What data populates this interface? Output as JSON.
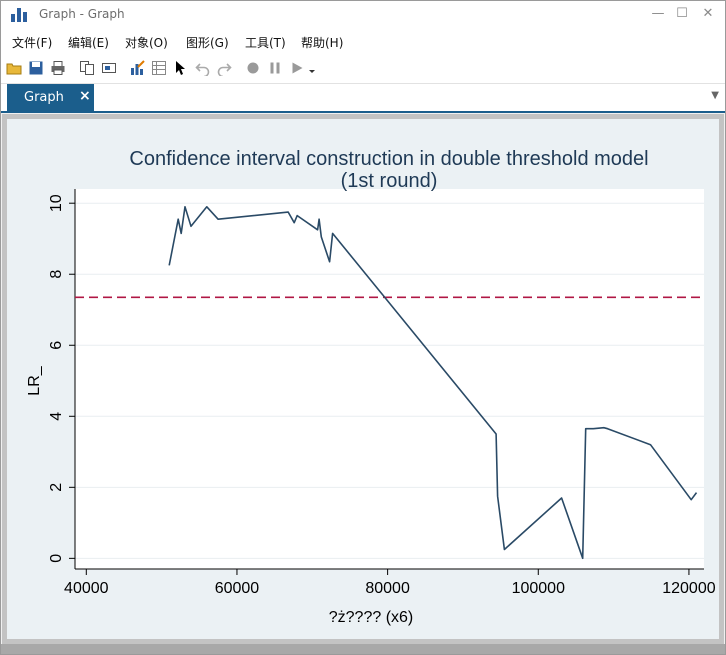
{
  "window": {
    "title": "Graph - Graph",
    "minimize_icon": "minimize-icon",
    "maximize_icon": "maximize-icon",
    "close_icon": "close-icon"
  },
  "menu": {
    "items": [
      "文件(F)",
      "编辑(E)",
      "对象(O)",
      "图形(G)",
      "工具(T)",
      "帮助(H)"
    ]
  },
  "toolbar": {
    "icons": [
      "open-folder-icon",
      "save-icon",
      "print-icon",
      "copy-icon",
      "rename-icon",
      "graph-editor-icon",
      "data-editor-icon",
      "pointer-icon",
      "undo-icon",
      "redo-icon",
      "record-icon",
      "pause-icon",
      "play-icon"
    ]
  },
  "tabs": [
    {
      "label": "Graph",
      "close": "×"
    }
  ],
  "colors": {
    "series": "#2a4a66",
    "reference_line": "#b01744",
    "plot_background": "#ffffff",
    "canvas_background": "#ebf1f4",
    "tab_active": "#1b5e8c"
  },
  "chart_data": {
    "type": "line",
    "title": "Confidence interval construction in double threshold model",
    "subtitle": "(1st round)",
    "xlabel": "?ż???? (x6)",
    "ylabel": "LR_",
    "xlim": [
      38500,
      122000
    ],
    "ylim": [
      -0.3,
      10.4
    ],
    "xticks": [
      40000,
      60000,
      80000,
      100000,
      120000
    ],
    "xtick_labels": [
      "40000",
      "60000",
      "80000",
      "100000",
      "120000"
    ],
    "yticks": [
      0,
      2,
      4,
      6,
      8,
      10
    ],
    "ytick_labels": [
      "0",
      "2",
      "4",
      "6",
      "8",
      "10"
    ],
    "grid": "horizontal",
    "legend": "none",
    "reference_line": {
      "y": 7.35,
      "style": "dashed"
    },
    "series": [
      {
        "x": [
          51000,
          52200,
          52600,
          53100,
          53900,
          56000,
          57500,
          66800,
          67600,
          68000,
          70700,
          70900,
          71200,
          72300,
          72700,
          94400,
          94600,
          95500,
          103100,
          105900,
          106300,
          107300,
          108700,
          109200,
          114900,
          120300,
          121000
        ],
        "y": [
          8.25,
          9.55,
          9.15,
          9.9,
          9.35,
          9.9,
          9.55,
          9.75,
          9.45,
          9.65,
          9.25,
          9.55,
          9.05,
          8.35,
          9.15,
          3.5,
          1.75,
          0.25,
          1.7,
          0.0,
          3.65,
          3.65,
          3.68,
          3.65,
          3.2,
          1.65,
          1.85
        ]
      }
    ]
  }
}
